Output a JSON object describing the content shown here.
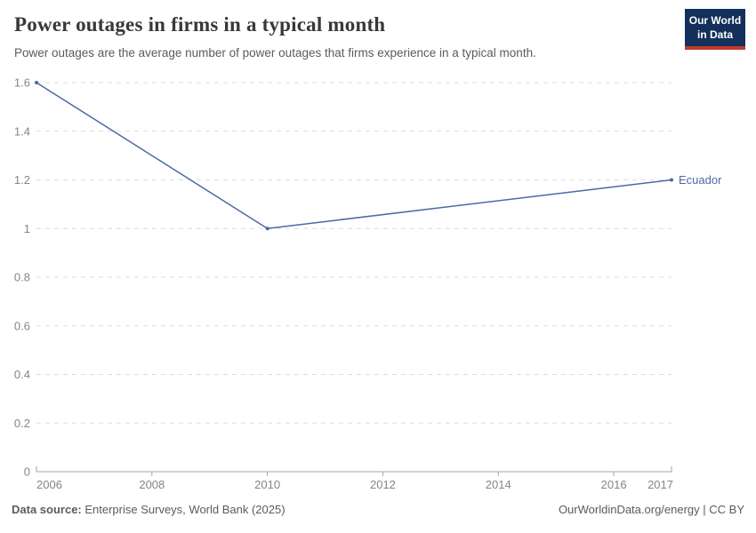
{
  "header": {
    "title": "Power outages in firms in a typical month",
    "subtitle": "Power outages are the average number of power outages that firms experience in a typical month.",
    "logo": {
      "line1": "Our World",
      "line2": "in Data"
    }
  },
  "chart_data": {
    "type": "line",
    "title": "Power outages in firms in a typical month",
    "series": [
      {
        "name": "Ecuador",
        "x": [
          2006,
          2010,
          2017
        ],
        "values": [
          1.6,
          1.0,
          1.2
        ]
      }
    ],
    "entity_label": "Ecuador",
    "xlim": [
      2006,
      2017
    ],
    "ylim": [
      0,
      1.6
    ],
    "x_ticks": {
      "values": [
        2006,
        2008,
        2010,
        2012,
        2014,
        2016,
        2017
      ],
      "labels": [
        "2006",
        "2008",
        "2010",
        "2012",
        "2014",
        "2016",
        "2017"
      ]
    },
    "y_ticks": {
      "values": [
        0,
        0.2,
        0.4,
        0.6,
        0.8,
        1,
        1.2,
        1.4,
        1.6
      ],
      "labels": [
        "0",
        "0.2",
        "0.4",
        "0.6",
        "0.8",
        "1",
        "1.2",
        "1.4",
        "1.6"
      ]
    },
    "grid": "horizontal-dashed",
    "legend_position": "end-of-line-label",
    "xlabel": "",
    "ylabel": ""
  },
  "footer": {
    "source_label": "Data source:",
    "source_text": " Enterprise Surveys, World Bank (2025)",
    "credit": "OurWorldinData.org/energy | CC BY"
  },
  "colors": {
    "line": "#4a69a5",
    "entity_label": "#4a69a5",
    "grid": "#dcdcdc",
    "axis": "#a6a6a6",
    "tick_label": "#858585",
    "title": "#383838",
    "subtitle": "#5b5b5b",
    "logo_bg": "#12305a",
    "logo_accent": "#c0392b"
  }
}
